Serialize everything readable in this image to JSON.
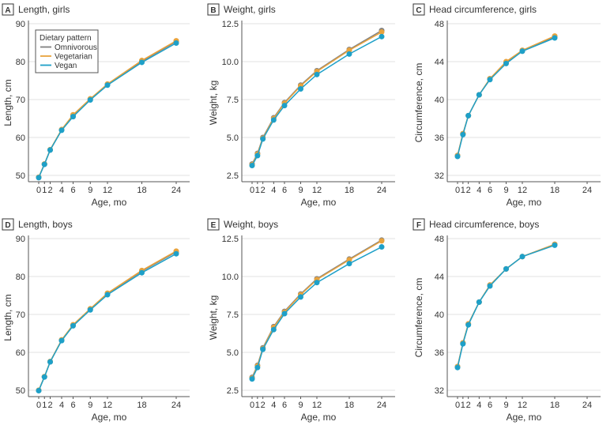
{
  "colors": {
    "Omnivorous": "#808080",
    "Vegetarian": "#e8a33d",
    "Vegan": "#1ea0c8"
  },
  "legend": {
    "title": "Dietary pattern",
    "entries": [
      "Omnivorous",
      "Vegetarian",
      "Vegan"
    ],
    "placement": "top-left (panel A)"
  },
  "chart_data": [
    {
      "type": "line",
      "letter": "A",
      "title": "Length, girls",
      "xlabel": "Age, mo",
      "ylabel": "Length, cm",
      "ylim": [
        48,
        90
      ],
      "yticks": [
        50,
        60,
        70,
        80,
        90
      ],
      "xticks": [
        0,
        1,
        2,
        4,
        6,
        9,
        12,
        18,
        24
      ],
      "xlim": [
        -1,
        25
      ],
      "grid": true,
      "x": [
        0,
        1,
        2,
        4,
        6,
        9,
        12,
        18,
        24
      ],
      "series": [
        {
          "name": "Omnivorous",
          "values": [
            49.5,
            53,
            56.7,
            62,
            65.8,
            70.1,
            74,
            80.1,
            85.3
          ]
        },
        {
          "name": "Vegetarian",
          "values": [
            49.5,
            53,
            56.8,
            62.1,
            66,
            70.2,
            74.1,
            80.3,
            85.5
          ]
        },
        {
          "name": "Vegan",
          "values": [
            49.4,
            52.9,
            56.7,
            61.9,
            65.5,
            69.9,
            73.8,
            79.8,
            84.9
          ]
        }
      ]
    },
    {
      "type": "line",
      "letter": "B",
      "title": "Weight, girls",
      "xlabel": "Age, mo",
      "ylabel": "Weight, kg",
      "ylim": [
        2.5,
        12.5
      ],
      "yticks": [
        "2.5",
        "5.0",
        "7.5",
        "10.0",
        "12.5"
      ],
      "xticks": [
        0,
        1,
        2,
        4,
        6,
        9,
        12,
        18,
        24
      ],
      "xlim": [
        -1,
        25
      ],
      "grid": true,
      "x": [
        0,
        1,
        2,
        4,
        6,
        9,
        12,
        18,
        24
      ],
      "series": [
        {
          "name": "Omnivorous",
          "values": [
            3.25,
            3.95,
            5.0,
            6.3,
            7.3,
            8.45,
            9.4,
            10.8,
            12.05
          ]
        },
        {
          "name": "Vegetarian",
          "values": [
            3.2,
            3.9,
            4.95,
            6.25,
            7.25,
            8.4,
            9.35,
            10.75,
            11.95
          ]
        },
        {
          "name": "Vegan",
          "values": [
            3.15,
            3.8,
            4.9,
            6.15,
            7.1,
            8.2,
            9.15,
            10.5,
            11.65
          ]
        }
      ]
    },
    {
      "type": "line",
      "letter": "C",
      "title": "Head circumference, girls",
      "xlabel": "Age, mo",
      "ylabel": "Circumference, cm",
      "ylim": [
        32,
        48
      ],
      "yticks": [
        32,
        36,
        40,
        44,
        48
      ],
      "xticks": [
        0,
        1,
        2,
        4,
        6,
        9,
        12,
        18,
        24
      ],
      "xlim": [
        -1,
        25
      ],
      "grid": true,
      "x": [
        0,
        1,
        2,
        4,
        6,
        9,
        12,
        18
      ],
      "series": [
        {
          "name": "Omnivorous",
          "values": [
            34.1,
            36.4,
            38.3,
            40.5,
            42.2,
            43.9,
            45.1,
            46.6
          ]
        },
        {
          "name": "Vegetarian",
          "values": [
            34.1,
            36.4,
            38.3,
            40.5,
            42.2,
            44.0,
            45.2,
            46.7
          ]
        },
        {
          "name": "Vegan",
          "values": [
            34.0,
            36.3,
            38.3,
            40.5,
            42.1,
            43.8,
            45.1,
            46.5
          ]
        }
      ]
    },
    {
      "type": "line",
      "letter": "D",
      "title": "Length, boys",
      "xlabel": "Age, mo",
      "ylabel": "Length, cm",
      "ylim": [
        48,
        90
      ],
      "yticks": [
        50,
        60,
        70,
        80,
        90
      ],
      "xticks": [
        0,
        1,
        2,
        4,
        6,
        9,
        12,
        18,
        24
      ],
      "xlim": [
        -1,
        25
      ],
      "grid": true,
      "x": [
        0,
        1,
        2,
        4,
        6,
        9,
        12,
        18,
        24
      ],
      "series": [
        {
          "name": "Omnivorous",
          "values": [
            50,
            53.6,
            57.5,
            63.2,
            67.2,
            71.4,
            75.5,
            81.4,
            86.5
          ]
        },
        {
          "name": "Vegetarian",
          "values": [
            50,
            53.6,
            57.6,
            63.3,
            67.3,
            71.5,
            75.6,
            81.6,
            86.7
          ]
        },
        {
          "name": "Vegan",
          "values": [
            49.9,
            53.5,
            57.5,
            63.1,
            67,
            71.2,
            75.2,
            81,
            86
          ]
        }
      ]
    },
    {
      "type": "line",
      "letter": "E",
      "title": "Weight, boys",
      "xlabel": "Age, mo",
      "ylabel": "Weight, kg",
      "ylim": [
        2.5,
        12.5
      ],
      "yticks": [
        "2.5",
        "5.0",
        "7.5",
        "10.0",
        "12.5"
      ],
      "xticks": [
        0,
        1,
        2,
        4,
        6,
        9,
        12,
        18,
        24
      ],
      "xlim": [
        -1,
        25
      ],
      "grid": true,
      "x": [
        0,
        1,
        2,
        4,
        6,
        9,
        12,
        18,
        24
      ],
      "series": [
        {
          "name": "Omnivorous",
          "values": [
            3.35,
            4.15,
            5.3,
            6.7,
            7.7,
            8.85,
            9.85,
            11.15,
            12.4
          ]
        },
        {
          "name": "Vegetarian",
          "values": [
            3.3,
            4.1,
            5.25,
            6.65,
            7.65,
            8.8,
            9.8,
            11.1,
            12.35
          ]
        },
        {
          "name": "Vegan",
          "values": [
            3.25,
            4.0,
            5.2,
            6.5,
            7.55,
            8.65,
            9.6,
            10.85,
            11.95
          ]
        }
      ]
    },
    {
      "type": "line",
      "letter": "F",
      "title": "Head circumference, boys",
      "xlabel": "Age, mo",
      "ylabel": "Circumference, cm",
      "ylim": [
        32,
        48
      ],
      "yticks": [
        32,
        36,
        40,
        44,
        48
      ],
      "xticks": [
        0,
        1,
        2,
        4,
        6,
        9,
        12,
        18,
        24
      ],
      "xlim": [
        -1,
        25
      ],
      "grid": true,
      "x": [
        0,
        1,
        2,
        4,
        6,
        9,
        12,
        18
      ],
      "series": [
        {
          "name": "Omnivorous",
          "values": [
            34.5,
            37,
            39,
            41.3,
            43.1,
            44.8,
            46.1,
            47.4
          ]
        },
        {
          "name": "Vegetarian",
          "values": [
            34.5,
            37,
            39,
            41.3,
            43.1,
            44.8,
            46.1,
            47.4
          ]
        },
        {
          "name": "Vegan",
          "values": [
            34.4,
            36.9,
            38.9,
            41.3,
            43,
            44.8,
            46.1,
            47.3
          ]
        }
      ]
    }
  ]
}
